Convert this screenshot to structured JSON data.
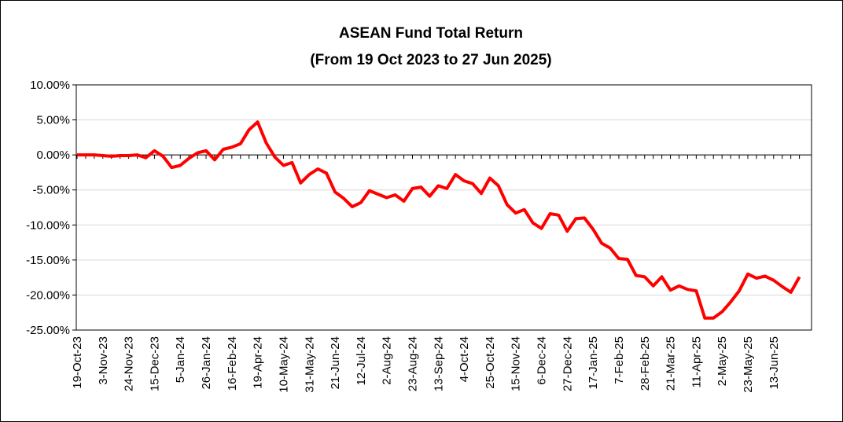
{
  "chart_data": {
    "type": "line",
    "title": "ASEAN Fund Total Return",
    "subtitle": "(From 19 Oct 2023 to 27 Jun 2025)",
    "categories": [
      "19-Oct-23",
      null,
      null,
      "3-Nov-23",
      null,
      null,
      "24-Nov-23",
      null,
      null,
      "15-Dec-23",
      null,
      null,
      "5-Jan-24",
      null,
      null,
      "26-Jan-24",
      null,
      null,
      "16-Feb-24",
      null,
      null,
      "19-Apr-24",
      null,
      null,
      "10-May-24",
      null,
      null,
      "31-May-24",
      null,
      null,
      "21-Jun-24",
      null,
      null,
      "12-Jul-24",
      null,
      null,
      "2-Aug-24",
      null,
      null,
      "23-Aug-24",
      null,
      null,
      "13-Sep-24",
      null,
      null,
      "4-Oct-24",
      null,
      null,
      "25-Oct-24",
      null,
      null,
      "15-Nov-24",
      null,
      null,
      "6-Dec-24",
      null,
      null,
      "27-Dec-24",
      null,
      null,
      "17-Jan-25",
      null,
      null,
      "7-Feb-25",
      null,
      null,
      "28-Feb-25",
      null,
      null,
      "21-Mar-25",
      null,
      null,
      "11-Apr-25",
      null,
      null,
      "2-May-25",
      null,
      null,
      "23-May-25",
      null,
      null,
      "13-Jun-25",
      null,
      null,
      null
    ],
    "series": [
      {
        "name": "ASEAN Fund",
        "color": "#ff0000",
        "values": [
          0.0,
          0.0,
          0.0,
          -0.1,
          -0.2,
          -0.1,
          -0.1,
          0.0,
          -0.4,
          0.6,
          -0.2,
          -1.8,
          -1.5,
          -0.5,
          0.3,
          0.6,
          -0.7,
          0.8,
          1.1,
          1.6,
          3.6,
          4.7,
          1.7,
          -0.3,
          -1.5,
          -1.1,
          -4.0,
          -2.8,
          -2.0,
          -2.6,
          -5.3,
          -6.2,
          -7.4,
          -6.8,
          -5.1,
          -5.6,
          -6.1,
          -5.7,
          -6.6,
          -4.8,
          -4.6,
          -5.9,
          -4.4,
          -4.8,
          -2.8,
          -3.7,
          -4.1,
          -5.5,
          -3.3,
          -4.4,
          -7.1,
          -8.3,
          -7.8,
          -9.7,
          -10.5,
          -8.4,
          -8.6,
          -10.9,
          -9.1,
          -9.0,
          -10.6,
          -12.6,
          -13.3,
          -14.8,
          -14.9,
          -17.2,
          -17.4,
          -18.7,
          -17.4,
          -19.3,
          -18.7,
          -19.2,
          -19.4,
          -23.3,
          -23.3,
          -22.4,
          -21.0,
          -19.4,
          -17.0,
          -17.6,
          -17.3,
          -17.9,
          -18.8,
          -19.6,
          -17.4
        ]
      }
    ],
    "ylim": [
      -25,
      10
    ],
    "yticks": [
      {
        "value": -25,
        "label": "-25.00%"
      },
      {
        "value": -20,
        "label": "-20.00%"
      },
      {
        "value": -15,
        "label": "-15.00%"
      },
      {
        "value": -10,
        "label": "-10.00%"
      },
      {
        "value": -5,
        "label": "-5.00%"
      },
      {
        "value": 0,
        "label": "0.00%"
      },
      {
        "value": 5,
        "label": "5.00%"
      },
      {
        "value": 10,
        "label": "10.00%"
      }
    ],
    "grid": true
  }
}
